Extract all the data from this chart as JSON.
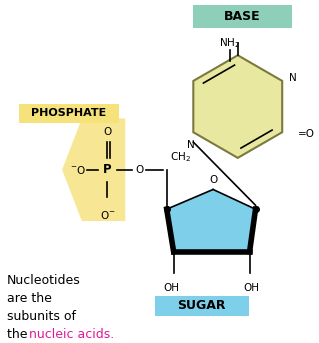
{
  "bg_color": "#ffffff",
  "base_label": "BASE",
  "base_label_bg": "#8ecfba",
  "phosphate_label": "PHOSPHATE",
  "phosphate_label_bg": "#f5e27a",
  "sugar_label": "SUGAR",
  "sugar_label_bg": "#7dcfea",
  "sugar_color": "#7dcfea",
  "base_color": "#e8e8a0",
  "phosphate_color": "#f5e27a",
  "bottom_text_color": "#e0189c",
  "text_color": "#000000",
  "figsize": [
    3.19,
    3.43
  ],
  "dpi": 100
}
